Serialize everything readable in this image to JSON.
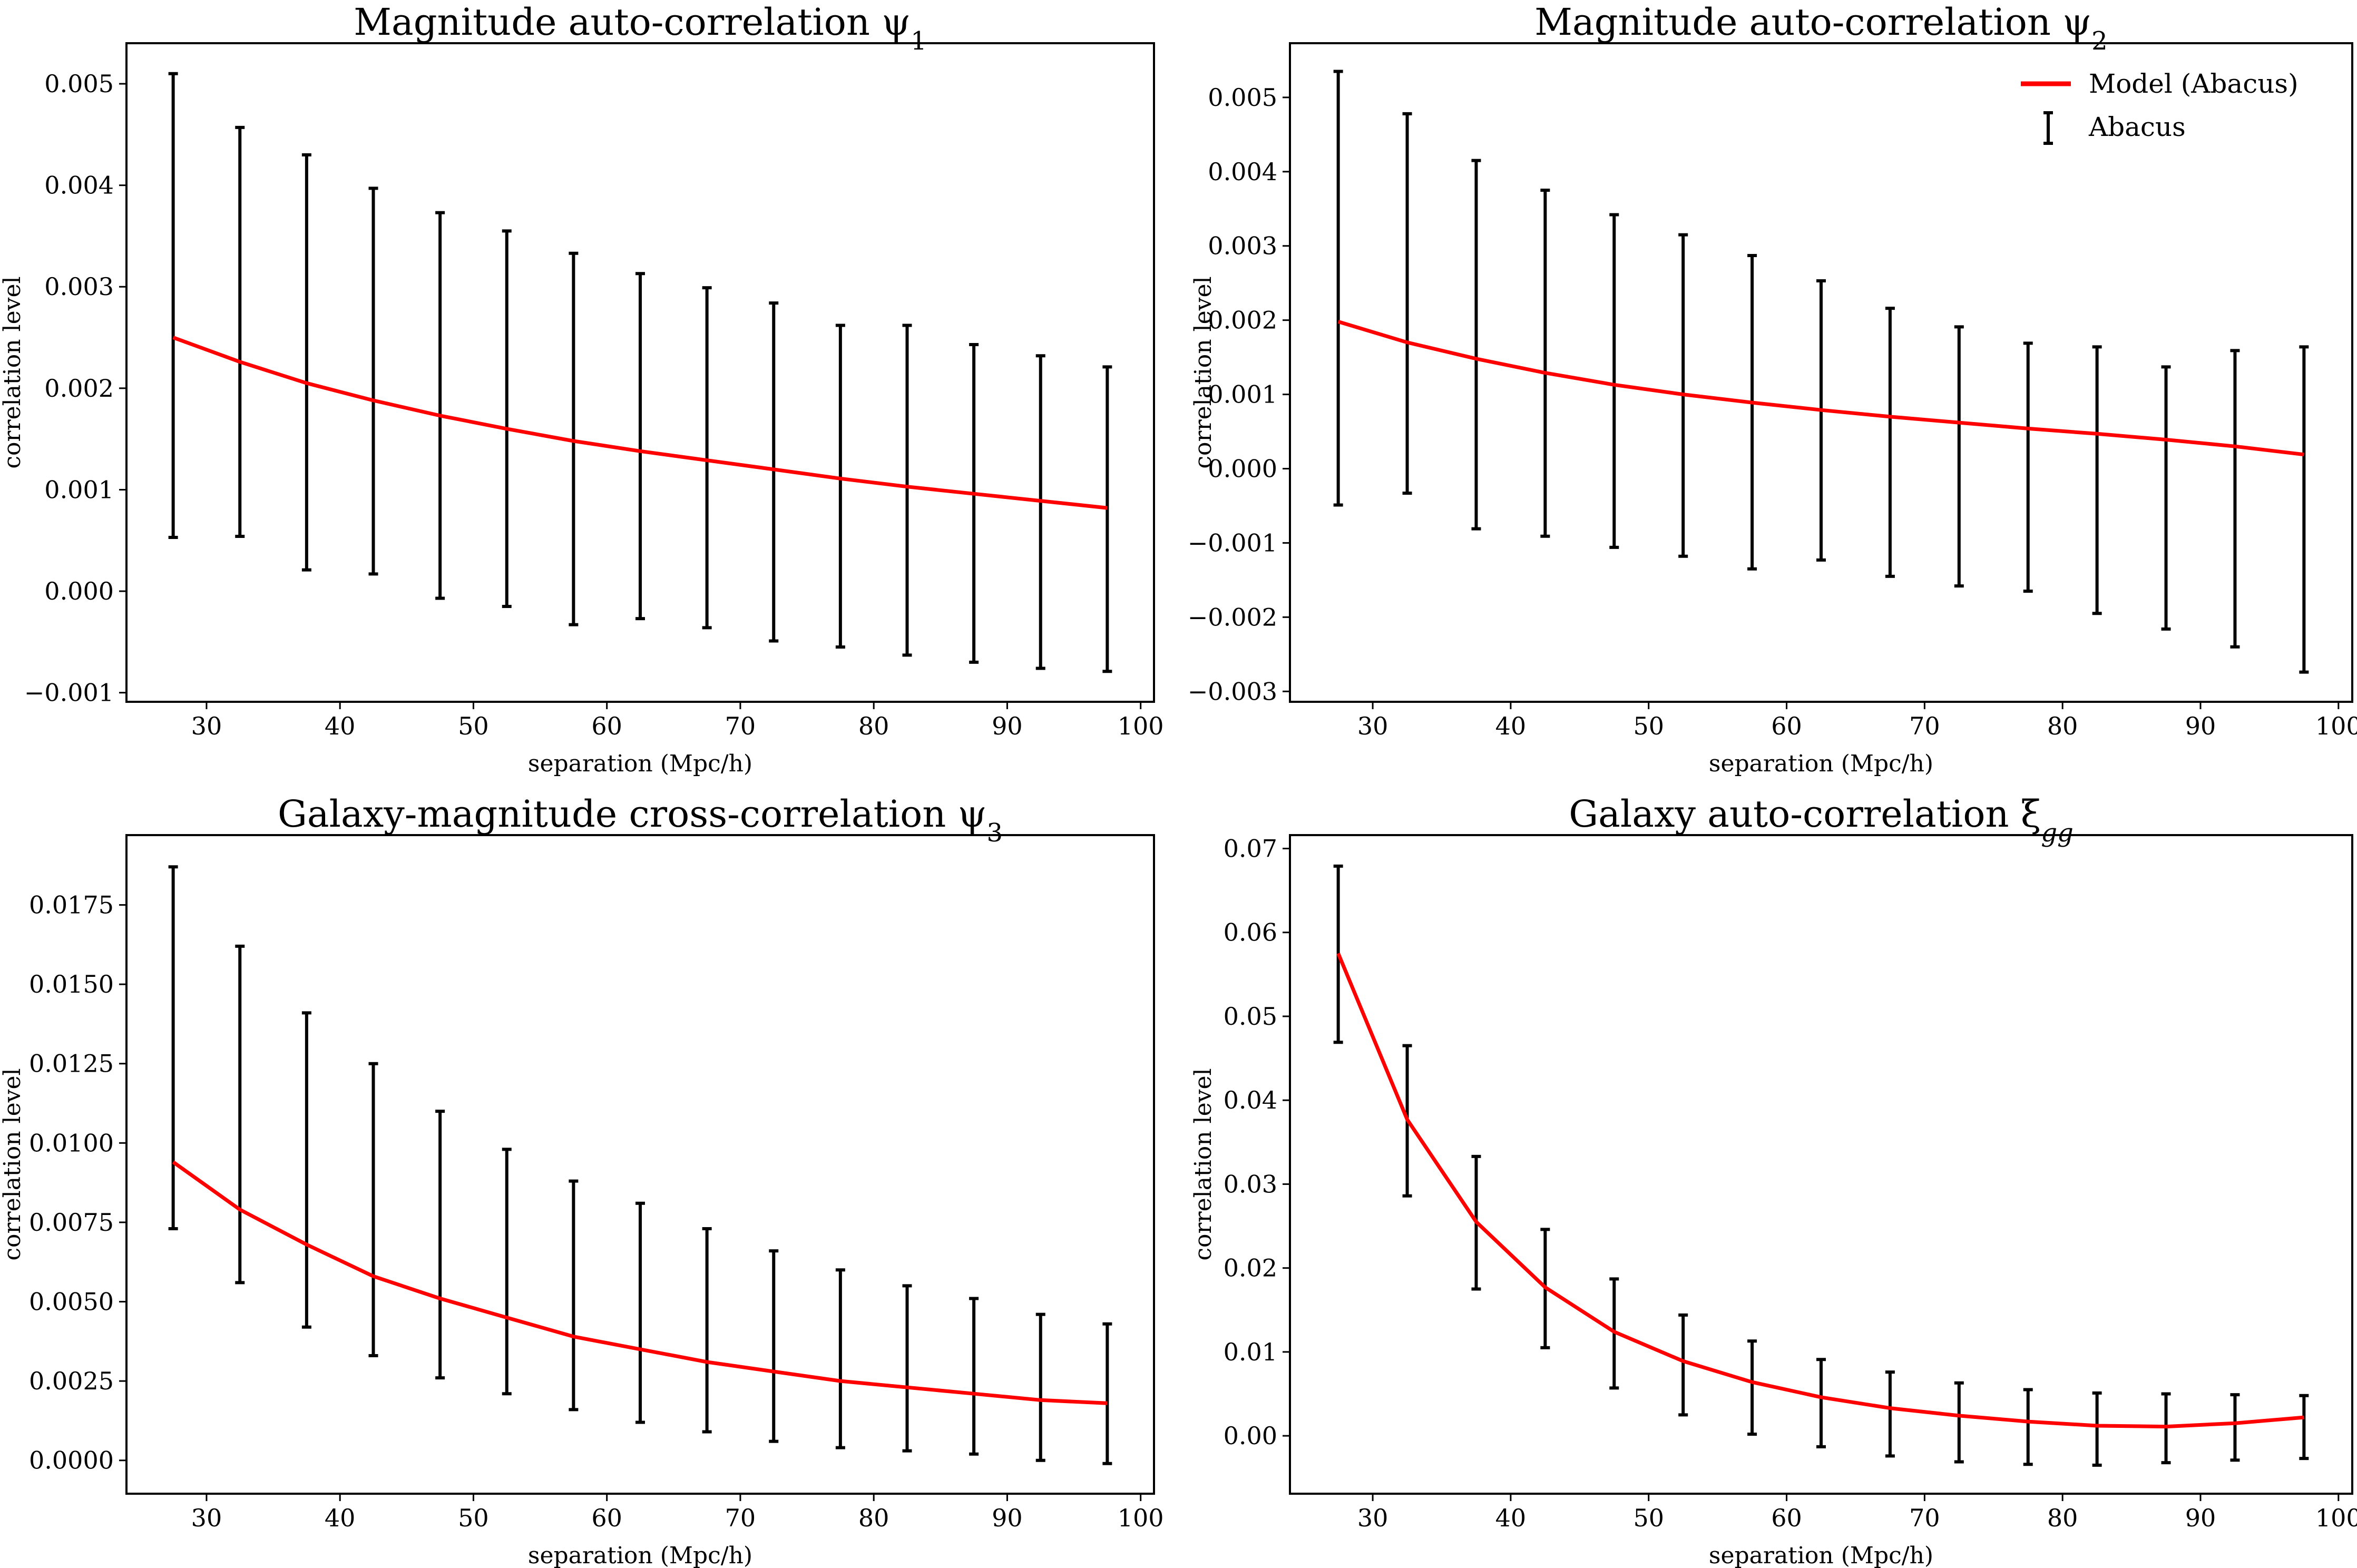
{
  "figure": {
    "legend": {
      "location": "upper-right",
      "panel": 1,
      "entries": [
        {
          "label": "Model (Abacus)",
          "kind": "line",
          "color": "#ff0000"
        },
        {
          "label": "Abacus",
          "kind": "errorbar",
          "color": "#000000"
        }
      ]
    }
  },
  "chart_data": [
    {
      "type": "line",
      "title": "Magnitude auto-correlation ψ",
      "title_subscript": "1",
      "xlabel": "separation (Mpc/h)",
      "ylabel": "correlation level",
      "xlim": [
        24.0,
        101.0
      ],
      "ylim": [
        -0.00109,
        0.0054
      ],
      "xticks": [
        30,
        40,
        50,
        60,
        70,
        80,
        90,
        100
      ],
      "xtick_labels": [
        "30",
        "40",
        "50",
        "60",
        "70",
        "80",
        "90",
        "100"
      ],
      "yticks": [
        -0.001,
        0.0,
        0.001,
        0.002,
        0.003,
        0.004,
        0.005
      ],
      "ytick_labels": [
        "−0.001",
        "0.000",
        "0.001",
        "0.002",
        "0.003",
        "0.004",
        "0.005"
      ],
      "grid": false,
      "x": [
        27.5,
        32.5,
        37.5,
        42.5,
        47.5,
        52.5,
        57.5,
        62.5,
        67.5,
        72.5,
        77.5,
        82.5,
        87.5,
        92.5,
        97.5
      ],
      "series": [
        {
          "name": "Model (Abacus)",
          "kind": "line",
          "color": "#ff0000",
          "values": [
            0.0025,
            0.00226,
            0.00205,
            0.00188,
            0.00173,
            0.0016,
            0.00148,
            0.00138,
            0.00129,
            0.0012,
            0.00111,
            0.00103,
            0.00096,
            0.00089,
            0.00082
          ]
        },
        {
          "name": "Abacus",
          "kind": "errorbar",
          "color": "#000000",
          "upper": [
            0.0051,
            0.00457,
            0.0043,
            0.00397,
            0.00373,
            0.00355,
            0.00333,
            0.00313,
            0.00299,
            0.00284,
            0.00262,
            0.00262,
            0.00243,
            0.00232,
            0.00221
          ],
          "lower": [
            0.00053,
            0.00054,
            0.00021,
            0.00017,
            -7e-05,
            -0.00015,
            -0.00033,
            -0.00027,
            -0.00036,
            -0.00049,
            -0.00055,
            -0.00063,
            -0.0007,
            -0.00076,
            -0.00079
          ]
        }
      ]
    },
    {
      "type": "line",
      "title": "Magnitude auto-correlation ψ",
      "title_subscript": "2",
      "xlabel": "separation (Mpc/h)",
      "ylabel": "correlation level",
      "xlim": [
        24.0,
        101.0
      ],
      "ylim": [
        -0.00314,
        0.00573
      ],
      "xticks": [
        30,
        40,
        50,
        60,
        70,
        80,
        90,
        100
      ],
      "xtick_labels": [
        "30",
        "40",
        "50",
        "60",
        "70",
        "80",
        "90",
        "100"
      ],
      "yticks": [
        -0.003,
        -0.002,
        -0.001,
        0.0,
        0.001,
        0.002,
        0.003,
        0.004,
        0.005
      ],
      "ytick_labels": [
        "−0.003",
        "−0.002",
        "−0.001",
        "0.000",
        "0.001",
        "0.002",
        "0.003",
        "0.004",
        "0.005"
      ],
      "grid": false,
      "legend_position": "top-right",
      "x": [
        27.5,
        32.5,
        37.5,
        42.5,
        47.5,
        52.5,
        57.5,
        62.5,
        67.5,
        72.5,
        77.5,
        82.5,
        87.5,
        92.5,
        97.5
      ],
      "series": [
        {
          "name": "Model (Abacus)",
          "kind": "line",
          "color": "#ff0000",
          "values": [
            0.00198,
            0.0017,
            0.00148,
            0.00129,
            0.00113,
            0.001,
            0.00089,
            0.00079,
            0.0007,
            0.00062,
            0.00054,
            0.00047,
            0.00039,
            0.0003,
            0.00019
          ]
        },
        {
          "name": "Abacus",
          "kind": "errorbar",
          "color": "#000000",
          "upper": [
            0.00535,
            0.00478,
            0.00415,
            0.00375,
            0.00342,
            0.00315,
            0.00287,
            0.00253,
            0.00216,
            0.00191,
            0.00169,
            0.00164,
            0.00137,
            0.00159,
            0.00164
          ],
          "lower": [
            -0.00049,
            -0.00033,
            -0.00081,
            -0.00091,
            -0.00106,
            -0.00118,
            -0.00135,
            -0.00123,
            -0.00145,
            -0.00158,
            -0.00165,
            -0.00195,
            -0.00216,
            -0.0024,
            -0.00274
          ]
        }
      ]
    },
    {
      "type": "line",
      "title": "Galaxy-magnitude cross-correlation ψ",
      "title_subscript": "3",
      "xlabel": "separation (Mpc/h)",
      "ylabel": "correlation level",
      "xlim": [
        24.0,
        101.0
      ],
      "ylim": [
        -0.00105,
        0.0197
      ],
      "xticks": [
        30,
        40,
        50,
        60,
        70,
        80,
        90,
        100
      ],
      "xtick_labels": [
        "30",
        "40",
        "50",
        "60",
        "70",
        "80",
        "90",
        "100"
      ],
      "yticks": [
        0.0,
        0.0025,
        0.005,
        0.0075,
        0.01,
        0.0125,
        0.015,
        0.0175
      ],
      "ytick_labels": [
        "0.0000",
        "0.0025",
        "0.0050",
        "0.0075",
        "0.0100",
        "0.0125",
        "0.0150",
        "0.0175"
      ],
      "grid": false,
      "x": [
        27.5,
        32.5,
        37.5,
        42.5,
        47.5,
        52.5,
        57.5,
        62.5,
        67.5,
        72.5,
        77.5,
        82.5,
        87.5,
        92.5,
        97.5
      ],
      "series": [
        {
          "name": "Model (Abacus)",
          "kind": "line",
          "color": "#ff0000",
          "values": [
            0.0094,
            0.0079,
            0.0068,
            0.0058,
            0.0051,
            0.0045,
            0.0039,
            0.0035,
            0.0031,
            0.0028,
            0.0025,
            0.0023,
            0.0021,
            0.0019,
            0.0018
          ]
        },
        {
          "name": "Abacus",
          "kind": "errorbar",
          "color": "#000000",
          "upper": [
            0.0187,
            0.0162,
            0.0141,
            0.0125,
            0.011,
            0.0098,
            0.0088,
            0.0081,
            0.0073,
            0.0066,
            0.006,
            0.0055,
            0.0051,
            0.0046,
            0.0043
          ],
          "lower": [
            0.0073,
            0.0056,
            0.0042,
            0.0033,
            0.0026,
            0.0021,
            0.0016,
            0.0012,
            0.0009,
            0.0006,
            0.0004,
            0.0003,
            0.0002,
            0.0,
            -0.0001
          ]
        }
      ]
    },
    {
      "type": "line",
      "title": "Galaxy auto-correlation ξ",
      "title_subscript": "gg",
      "xlabel": "separation (Mpc/h)",
      "ylabel": "correlation level",
      "xlim": [
        24.0,
        101.0
      ],
      "ylim": [
        -0.0069,
        0.0716
      ],
      "xticks": [
        30,
        40,
        50,
        60,
        70,
        80,
        90,
        100
      ],
      "xtick_labels": [
        "30",
        "40",
        "50",
        "60",
        "70",
        "80",
        "90",
        "100"
      ],
      "yticks": [
        0.0,
        0.01,
        0.02,
        0.03,
        0.04,
        0.05,
        0.06,
        0.07
      ],
      "ytick_labels": [
        "0.00",
        "0.01",
        "0.02",
        "0.03",
        "0.04",
        "0.05",
        "0.06",
        "0.07"
      ],
      "grid": false,
      "x": [
        27.5,
        32.5,
        37.5,
        42.5,
        47.5,
        52.5,
        57.5,
        62.5,
        67.5,
        72.5,
        77.5,
        82.5,
        87.5,
        92.5,
        97.5
      ],
      "series": [
        {
          "name": "Model (Abacus)",
          "kind": "line",
          "color": "#ff0000",
          "values": [
            0.0575,
            0.0377,
            0.0255,
            0.0177,
            0.0124,
            0.0089,
            0.0064,
            0.0046,
            0.0033,
            0.0024,
            0.0017,
            0.0012,
            0.0011,
            0.0015,
            0.0022
          ]
        },
        {
          "name": "Abacus",
          "kind": "errorbar",
          "color": "#000000",
          "upper": [
            0.0679,
            0.0465,
            0.0333,
            0.0246,
            0.0187,
            0.0144,
            0.0113,
            0.0091,
            0.0076,
            0.0063,
            0.0055,
            0.0051,
            0.005,
            0.0049,
            0.0048
          ],
          "lower": [
            0.0469,
            0.0286,
            0.0175,
            0.0105,
            0.0057,
            0.0025,
            0.0002,
            -0.0013,
            -0.0024,
            -0.0031,
            -0.0034,
            -0.0035,
            -0.0032,
            -0.0029,
            -0.0027
          ]
        }
      ]
    }
  ]
}
